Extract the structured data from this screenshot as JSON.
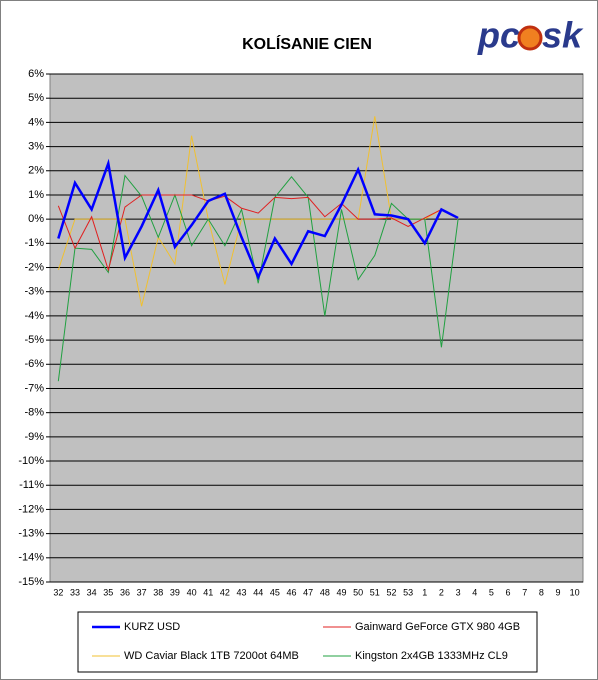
{
  "chart_data": {
    "type": "line",
    "title": "KOLÍSANIE CIEN",
    "logo": [
      "pc",
      "sk"
    ],
    "categories": [
      "32",
      "33",
      "34",
      "35",
      "36",
      "37",
      "38",
      "39",
      "40",
      "41",
      "42",
      "43",
      "44",
      "45",
      "46",
      "47",
      "48",
      "49",
      "50",
      "51",
      "52",
      "53",
      "1",
      "2",
      "3",
      "4",
      "5",
      "6",
      "7",
      "8",
      "9",
      "10"
    ],
    "series": [
      {
        "name": "KURZ USD",
        "color": "#0000ff",
        "width": 2.5,
        "values": [
          -0.8,
          1.5,
          0.4,
          2.3,
          -1.6,
          -0.3,
          1.2,
          -1.15,
          -0.25,
          0.75,
          1.05,
          -0.75,
          -2.4,
          -0.8,
          -1.85,
          -0.5,
          -0.7,
          0.6,
          2.05,
          0.2,
          0.15,
          0,
          -1.0,
          0.4,
          0.05,
          null,
          null,
          null,
          null,
          null,
          null,
          null
        ]
      },
      {
        "name": "Gainward GeForce GTX 980 4GB",
        "color": "#e02020",
        "width": 1,
        "values": [
          0.55,
          -1.2,
          0.1,
          -2.1,
          0.5,
          1.0,
          1.0,
          1.0,
          1.0,
          0.75,
          0.95,
          0.45,
          0.25,
          0.9,
          0.85,
          0.9,
          0.1,
          0.65,
          0,
          0,
          0.05,
          -0.3,
          0.05,
          0.4,
          0.05,
          null,
          null,
          null,
          null,
          null,
          null,
          null
        ]
      },
      {
        "name": "WD Caviar Black 1TB 7200ot 64MB",
        "color": "#f0c030",
        "width": 1,
        "values": [
          -2.1,
          0,
          0,
          0,
          0,
          -3.6,
          -0.75,
          -1.85,
          3.45,
          0,
          -2.7,
          0,
          0,
          0,
          0,
          0,
          0,
          0,
          0,
          4.25,
          0,
          0,
          0,
          0.4,
          0,
          null,
          null,
          null,
          null,
          null,
          null,
          null
        ]
      },
      {
        "name": "Kingston 2x4GB 1333MHz CL9",
        "color": "#20a040",
        "width": 1,
        "values": [
          -6.7,
          -1.2,
          -1.25,
          -2.2,
          1.8,
          0.95,
          -0.75,
          1.0,
          -1.1,
          0,
          -1.1,
          0.4,
          -2.65,
          0.9,
          1.75,
          0.9,
          -4.0,
          0.4,
          -2.5,
          -1.5,
          0.65,
          0,
          0,
          -5.3,
          0,
          null,
          null,
          null,
          null,
          null,
          null,
          null
        ]
      }
    ],
    "ylim": [
      -15,
      6
    ],
    "yticks": [
      {
        "value": 6,
        "label": "6%"
      },
      {
        "value": 5,
        "label": "5%"
      },
      {
        "value": 4,
        "label": "4%"
      },
      {
        "value": 3,
        "label": "3%"
      },
      {
        "value": 2,
        "label": "2%"
      },
      {
        "value": 1,
        "label": "1%"
      },
      {
        "value": 0,
        "label": "0%"
      },
      {
        "value": -1,
        "label": "-1%"
      },
      {
        "value": -2,
        "label": "-2%"
      },
      {
        "value": -3,
        "label": "-3%"
      },
      {
        "value": -4,
        "label": "-4%"
      },
      {
        "value": -5,
        "label": "-5%"
      },
      {
        "value": -6,
        "label": "-6%"
      },
      {
        "value": -7,
        "label": "-7%"
      },
      {
        "value": -8,
        "label": "-8%"
      },
      {
        "value": -9,
        "label": "-9%"
      },
      {
        "value": -10,
        "label": "-10%"
      },
      {
        "value": -11,
        "label": "-11%"
      },
      {
        "value": -12,
        "label": "-12%"
      },
      {
        "value": -13,
        "label": "-13%"
      },
      {
        "value": -14,
        "label": "-14%"
      },
      {
        "value": -15,
        "label": "-15%"
      }
    ],
    "grid": true
  }
}
